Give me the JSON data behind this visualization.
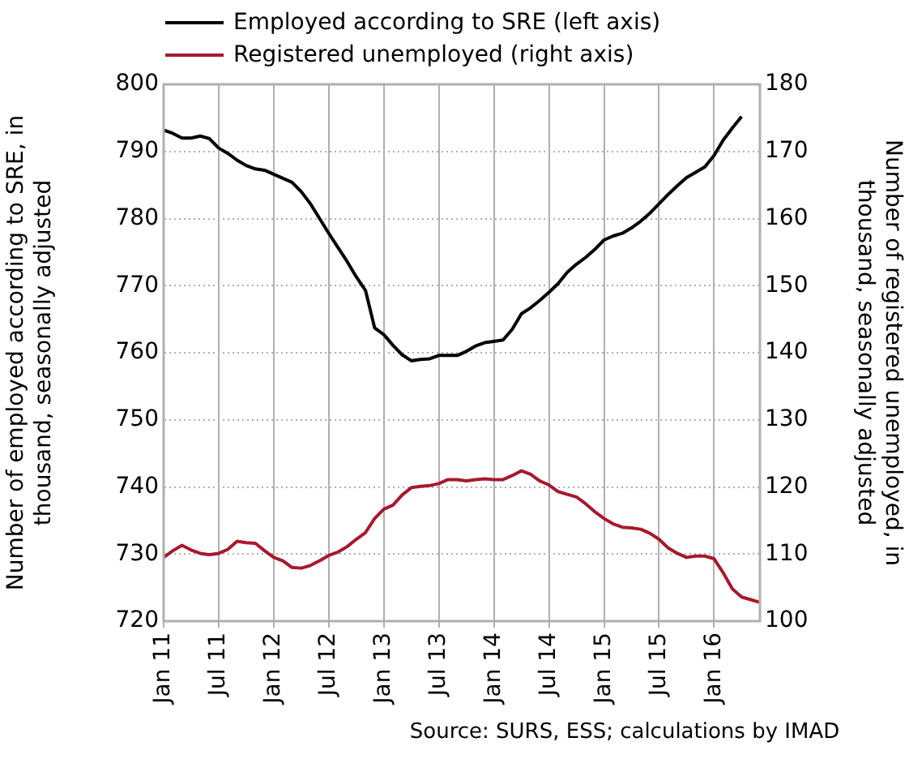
{
  "chart_data": {
    "type": "line",
    "categories": [
      "Jan 11",
      null,
      null,
      null,
      null,
      null,
      "Jul 11",
      null,
      null,
      null,
      null,
      null,
      "Jan 12",
      null,
      null,
      null,
      null,
      null,
      "Jul 12",
      null,
      null,
      null,
      null,
      null,
      "Jan 13",
      null,
      null,
      null,
      null,
      null,
      "Jul 13",
      null,
      null,
      null,
      null,
      null,
      "Jan 14",
      null,
      null,
      null,
      null,
      null,
      "Jul 14",
      null,
      null,
      null,
      null,
      null,
      "Jan 15",
      null,
      null,
      null,
      null,
      null,
      "Jul 15",
      null,
      null,
      null,
      null,
      null,
      "Jan 16",
      null,
      null,
      null,
      null,
      null
    ],
    "series": [
      {
        "name": "Employed according to SRE (left axis)",
        "color": "#000000",
        "axis": "y",
        "values": [
          793.2,
          792.7,
          792,
          792,
          792.3,
          791.9,
          790.5,
          789.7,
          788.7,
          787.9,
          787.4,
          787.2,
          786.6,
          786,
          785.4,
          784,
          782.2,
          780,
          777.8,
          775.7,
          773.6,
          771.3,
          769.3,
          763.7,
          762.7,
          761.1,
          759.7,
          758.8,
          759,
          759.1,
          759.6,
          759.6,
          759.6,
          760.2,
          761,
          761.5,
          761.7,
          761.9,
          763.5,
          765.8,
          766.7,
          767.8,
          769,
          770.3,
          772,
          773.2,
          774.2,
          775.4,
          776.8,
          777.4,
          777.8,
          778.6,
          779.6,
          780.8,
          782.2,
          783.6,
          784.9,
          786.1,
          786.9,
          787.7,
          789.4,
          791.7,
          793.5,
          795.2,
          null,
          null
        ]
      },
      {
        "name": "Registered unemployed (right axis)",
        "color": "#a6192e",
        "axis": "y2",
        "values": [
          109.5,
          110.5,
          111.3,
          110.6,
          110.1,
          109.9,
          110.1,
          110.7,
          111.9,
          111.7,
          111.6,
          110.5,
          109.5,
          109,
          108,
          107.9,
          108.3,
          109,
          109.8,
          110.3,
          111.1,
          112.2,
          113.2,
          115.3,
          116.7,
          117.3,
          118.8,
          119.9,
          120.1,
          120.2,
          120.5,
          121.1,
          121.1,
          120.9,
          121.1,
          121.2,
          121.1,
          121.1,
          121.7,
          122.4,
          121.9,
          120.9,
          120.3,
          119.3,
          118.9,
          118.5,
          117.5,
          116.3,
          115.3,
          114.5,
          114,
          113.9,
          113.7,
          113.1,
          112.2,
          110.9,
          110.1,
          109.5,
          109.7,
          109.7,
          109.3,
          107.2,
          104.8,
          103.6,
          103.2,
          102.8
        ]
      }
    ],
    "ylabel": "Number of employed according to SRE, in thousand, seasonally adjusted",
    "y2label": "Number of registered unemployed, in thousand, seasonally adjusted",
    "ylim": [
      720,
      800
    ],
    "yticks": [
      720,
      730,
      740,
      750,
      760,
      770,
      780,
      790,
      800
    ],
    "y2lim": [
      100,
      180
    ],
    "y2ticks": [
      100,
      110,
      120,
      130,
      140,
      150,
      160,
      170,
      180
    ],
    "grid": true,
    "legend": "top left",
    "marker": "none",
    "line_style": "solid",
    "annotations": [
      "Source: SURS, ESS; calculations by IMAD"
    ]
  }
}
